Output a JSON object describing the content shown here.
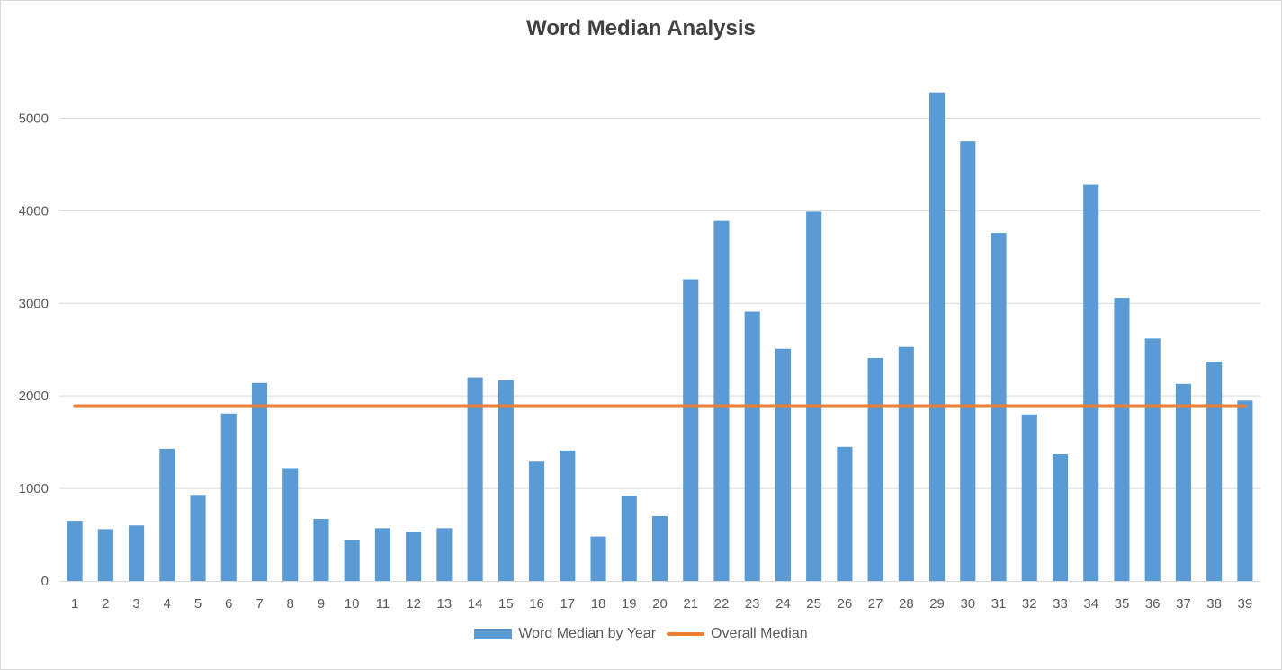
{
  "chart_data": {
    "type": "bar",
    "title": "Word Median Analysis",
    "xlabel": "",
    "ylabel": "",
    "categories": [
      "1",
      "2",
      "3",
      "4",
      "5",
      "6",
      "7",
      "8",
      "9",
      "10",
      "11",
      "12",
      "13",
      "14",
      "15",
      "16",
      "17",
      "18",
      "19",
      "20",
      "21",
      "22",
      "23",
      "24",
      "25",
      "26",
      "27",
      "28",
      "29",
      "30",
      "31",
      "32",
      "33",
      "34",
      "35",
      "36",
      "37",
      "38",
      "39"
    ],
    "ylim": [
      0,
      5500
    ],
    "yticks": [
      0,
      1000,
      2000,
      3000,
      4000,
      5000
    ],
    "grid": true,
    "legend_position": "bottom",
    "series": [
      {
        "name": "Word Median by Year",
        "type": "bar",
        "color": "#5b9bd5",
        "values": [
          650,
          560,
          600,
          1430,
          930,
          1810,
          2140,
          1220,
          670,
          440,
          570,
          530,
          570,
          2200,
          2170,
          1290,
          1410,
          480,
          920,
          700,
          3260,
          3890,
          2910,
          2510,
          3990,
          1450,
          2410,
          2530,
          5280,
          4750,
          3760,
          1800,
          1370,
          4280,
          3060,
          2620,
          2130,
          2370,
          1950
        ]
      },
      {
        "name": "Overall Median",
        "type": "line",
        "color": "#ed7d31",
        "values": [
          1890,
          1890,
          1890,
          1890,
          1890,
          1890,
          1890,
          1890,
          1890,
          1890,
          1890,
          1890,
          1890,
          1890,
          1890,
          1890,
          1890,
          1890,
          1890,
          1890,
          1890,
          1890,
          1890,
          1890,
          1890,
          1890,
          1890,
          1890,
          1890,
          1890,
          1890,
          1890,
          1890,
          1890,
          1890,
          1890,
          1890,
          1890,
          1890
        ]
      }
    ]
  }
}
